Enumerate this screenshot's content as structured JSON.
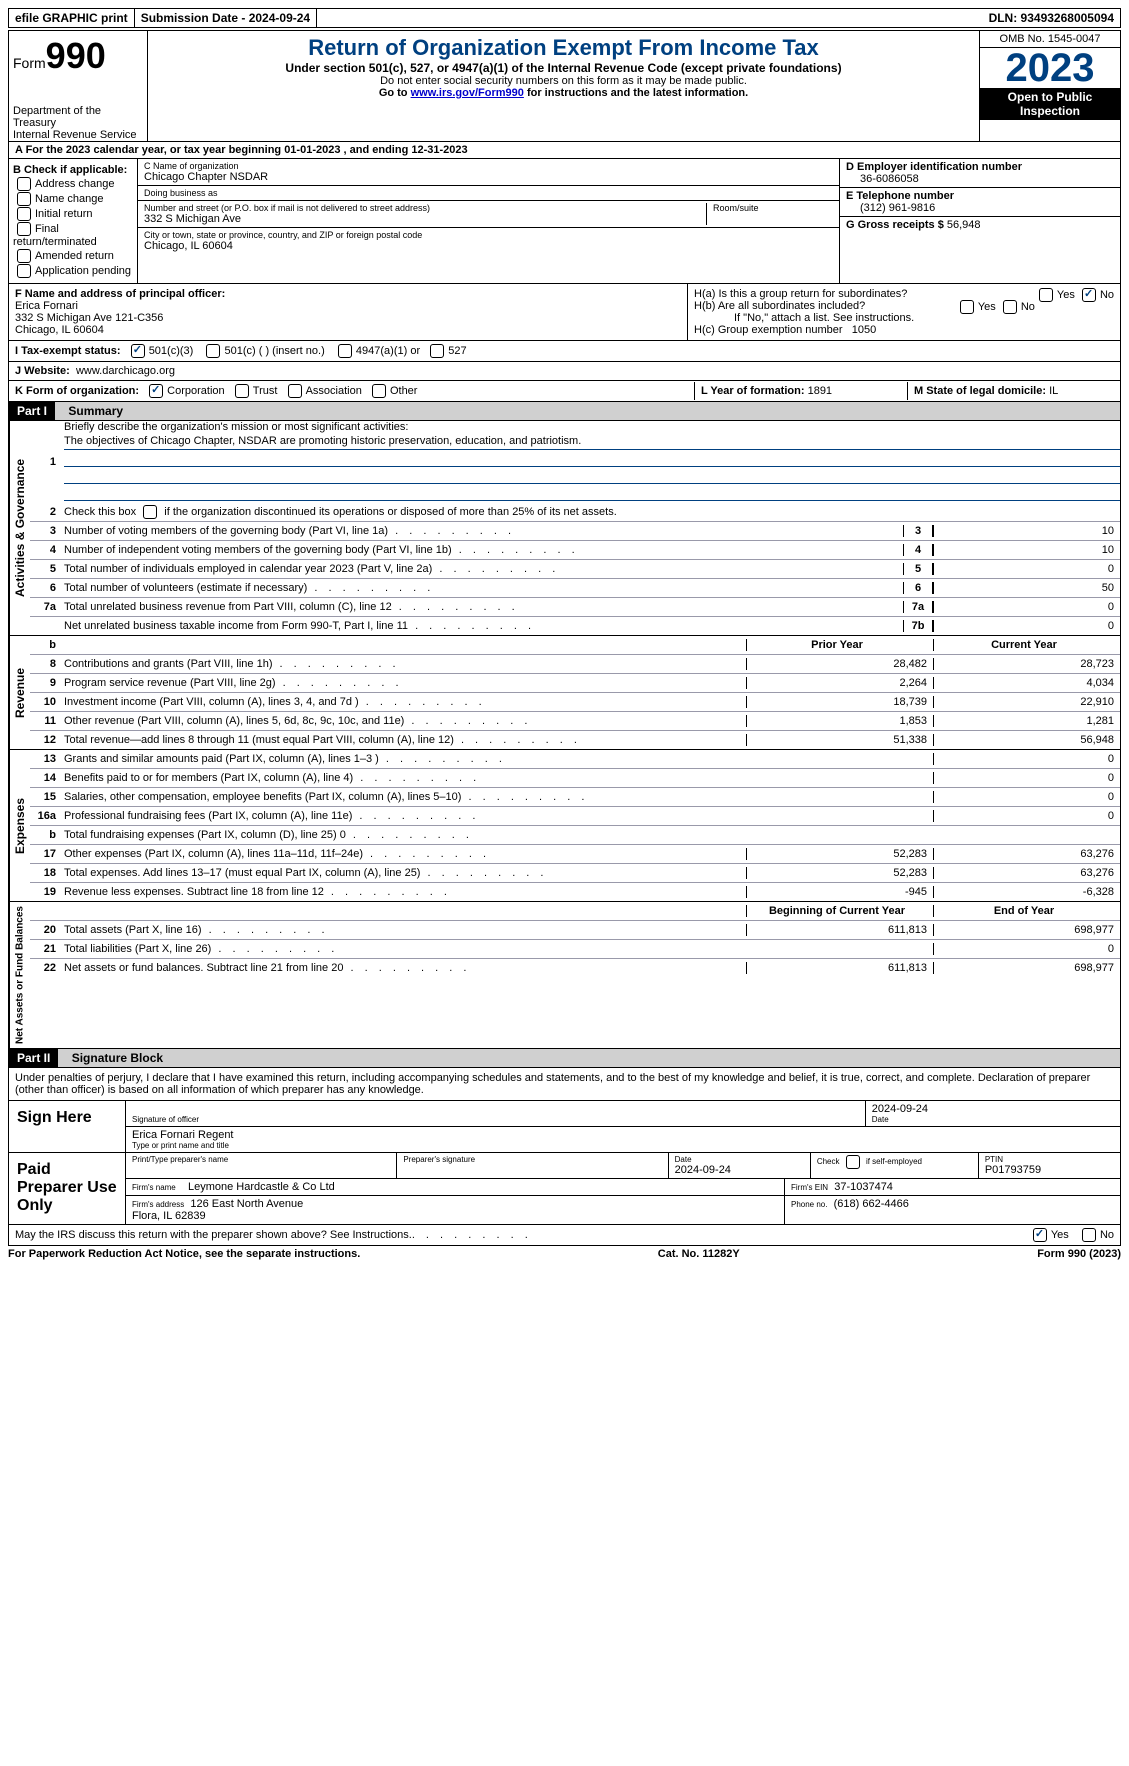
{
  "colors": {
    "accent": "#004080",
    "link": "#0000cc",
    "background": "#ffffff",
    "text": "#000000",
    "shaded": "#cccccc",
    "part_header_bg": "#000000",
    "part_bar_bg": "#d0d0d0"
  },
  "top": {
    "efile": "efile GRAPHIC print",
    "submission": "Submission Date - 2024-09-24",
    "dln": "DLN: 93493268005094"
  },
  "header": {
    "form": "Form",
    "number": "990",
    "dept": "Department of the Treasury\nInternal Revenue Service",
    "title": "Return of Organization Exempt From Income Tax",
    "subtitle": "Under section 501(c), 527, or 4947(a)(1) of the Internal Revenue Code (except private foundations)",
    "note1": "Do not enter social security numbers on this form as it may be made public.",
    "note2_pre": "Go to ",
    "note2_link": "www.irs.gov/Form990",
    "note2_post": " for instructions and the latest information.",
    "omb": "OMB No. 1545-0047",
    "year": "2023",
    "inspection": "Open to Public Inspection"
  },
  "lineA": "A For the 2023 calendar year, or tax year beginning 01-01-2023   , and ending 12-31-2023",
  "boxB": {
    "title": "B Check if applicable:",
    "items": [
      "Address change",
      "Name change",
      "Initial return",
      "Final return/terminated",
      "Amended return",
      "Application pending"
    ]
  },
  "boxC": {
    "name_label": "C Name of organization",
    "name": "Chicago Chapter NSDAR",
    "dba_label": "Doing business as",
    "dba": "",
    "addr_label": "Number and street (or P.O. box if mail is not delivered to street address)",
    "addr": "332 S Michigan Ave",
    "room_label": "Room/suite",
    "city_label": "City or town, state or province, country, and ZIP or foreign postal code",
    "city": "Chicago, IL  60604"
  },
  "boxD": {
    "label": "D Employer identification number",
    "value": "36-6086058"
  },
  "boxE": {
    "label": "E Telephone number",
    "value": "(312) 961-9816"
  },
  "boxG": {
    "label": "G Gross receipts $",
    "value": "56,948"
  },
  "boxF": {
    "label": "F  Name and address of principal officer:",
    "name": "Erica Fornari",
    "addr": "332 S Michigan Ave 121-C356\nChicago, IL  60604"
  },
  "boxH": {
    "a": "H(a)  Is this a group return for subordinates?",
    "a_yes": "Yes",
    "a_no": "No",
    "b": "H(b)  Are all subordinates included?",
    "b_yes": "Yes",
    "b_no": "No",
    "b_note": "If \"No,\" attach a list. See instructions.",
    "c": "H(c)  Group exemption number",
    "c_val": "1050"
  },
  "taxExempt": {
    "label": "I    Tax-exempt status:",
    "opts": [
      "501(c)(3)",
      "501(c) (  ) (insert no.)",
      "4947(a)(1) or",
      "527"
    ]
  },
  "website": {
    "label": "J    Website:",
    "value": "www.darchicago.org"
  },
  "formOrg": {
    "label": "K Form of organization:",
    "opts": [
      "Corporation",
      "Trust",
      "Association",
      "Other"
    ]
  },
  "yearFormed": {
    "label": "L Year of formation:",
    "value": "1891"
  },
  "domicile": {
    "label": "M State of legal domicile:",
    "value": "IL"
  },
  "partI": {
    "header": "Part I",
    "title": "Summary"
  },
  "gov": {
    "side": "Activities & Governance",
    "line1": "Briefly describe the organization's mission or most significant activities:",
    "mission": "The objectives of Chicago Chapter, NSDAR are promoting historic preservation, education, and patriotism.",
    "line2": "Check this box      if the organization discontinued its operations or disposed of more than 25% of its net assets.",
    "rows": [
      {
        "n": "3",
        "d": "Number of voting members of the governing body (Part VI, line 1a)",
        "box": "3",
        "v": "10"
      },
      {
        "n": "4",
        "d": "Number of independent voting members of the governing body (Part VI, line 1b)",
        "box": "4",
        "v": "10"
      },
      {
        "n": "5",
        "d": "Total number of individuals employed in calendar year 2023 (Part V, line 2a)",
        "box": "5",
        "v": "0"
      },
      {
        "n": "6",
        "d": "Total number of volunteers (estimate if necessary)",
        "box": "6",
        "v": "50"
      },
      {
        "n": "7a",
        "d": "Total unrelated business revenue from Part VIII, column (C), line 12",
        "box": "7a",
        "v": "0"
      },
      {
        "n": "",
        "d": "Net unrelated business taxable income from Form 990-T, Part I, line 11",
        "box": "7b",
        "v": "0"
      }
    ]
  },
  "rev": {
    "side": "Revenue",
    "hdr_prior": "Prior Year",
    "hdr_curr": "Current Year",
    "rows": [
      {
        "n": "8",
        "d": "Contributions and grants (Part VIII, line 1h)",
        "p": "28,482",
        "c": "28,723"
      },
      {
        "n": "9",
        "d": "Program service revenue (Part VIII, line 2g)",
        "p": "2,264",
        "c": "4,034"
      },
      {
        "n": "10",
        "d": "Investment income (Part VIII, column (A), lines 3, 4, and 7d )",
        "p": "18,739",
        "c": "22,910"
      },
      {
        "n": "11",
        "d": "Other revenue (Part VIII, column (A), lines 5, 6d, 8c, 9c, 10c, and 11e)",
        "p": "1,853",
        "c": "1,281"
      },
      {
        "n": "12",
        "d": "Total revenue—add lines 8 through 11 (must equal Part VIII, column (A), line 12)",
        "p": "51,338",
        "c": "56,948"
      }
    ]
  },
  "exp": {
    "side": "Expenses",
    "rows": [
      {
        "n": "13",
        "d": "Grants and similar amounts paid (Part IX, column (A), lines 1–3 )",
        "p": "",
        "c": "0"
      },
      {
        "n": "14",
        "d": "Benefits paid to or for members (Part IX, column (A), line 4)",
        "p": "",
        "c": "0"
      },
      {
        "n": "15",
        "d": "Salaries, other compensation, employee benefits (Part IX, column (A), lines 5–10)",
        "p": "",
        "c": "0"
      },
      {
        "n": "16a",
        "d": "Professional fundraising fees (Part IX, column (A), line 11e)",
        "p": "",
        "c": "0"
      },
      {
        "n": "b",
        "d": "Total fundraising expenses (Part IX, column (D), line 25) 0",
        "p": "shaded",
        "c": "shaded"
      },
      {
        "n": "17",
        "d": "Other expenses (Part IX, column (A), lines 11a–11d, 11f–24e)",
        "p": "52,283",
        "c": "63,276"
      },
      {
        "n": "18",
        "d": "Total expenses. Add lines 13–17 (must equal Part IX, column (A), line 25)",
        "p": "52,283",
        "c": "63,276"
      },
      {
        "n": "19",
        "d": "Revenue less expenses. Subtract line 18 from line 12",
        "p": "-945",
        "c": "-6,328"
      }
    ]
  },
  "net": {
    "side": "Net Assets or Fund Balances",
    "hdr_prior": "Beginning of Current Year",
    "hdr_curr": "End of Year",
    "rows": [
      {
        "n": "20",
        "d": "Total assets (Part X, line 16)",
        "p": "611,813",
        "c": "698,977"
      },
      {
        "n": "21",
        "d": "Total liabilities (Part X, line 26)",
        "p": "",
        "c": "0"
      },
      {
        "n": "22",
        "d": "Net assets or fund balances. Subtract line 21 from line 20",
        "p": "611,813",
        "c": "698,977"
      }
    ]
  },
  "partII": {
    "header": "Part II",
    "title": "Signature Block"
  },
  "perjury": "Under penalties of perjury, I declare that I have examined this return, including accompanying schedules and statements, and to the best of my knowledge and belief, it is true, correct, and complete. Declaration of preparer (other than officer) is based on all information of which preparer has any knowledge.",
  "sign": {
    "left": "Sign Here",
    "date": "2024-09-24",
    "sig_label": "Signature of officer",
    "name": "Erica Fornari Regent",
    "name_label": "Type or print name and title",
    "date_label": "Date"
  },
  "preparer": {
    "left": "Paid Preparer Use Only",
    "name_label": "Print/Type preparer's name",
    "sig_label": "Preparer's signature",
    "date_label": "Date",
    "date": "2024-09-24",
    "check_label": "Check        if self-employed",
    "ptin_label": "PTIN",
    "ptin": "P01793759",
    "firm_name_label": "Firm's name",
    "firm_name": "Leymone Hardcastle & Co Ltd",
    "firm_ein_label": "Firm's EIN",
    "firm_ein": "37-1037474",
    "firm_addr_label": "Firm's address",
    "firm_addr": "126 East North Avenue\nFlora, IL  62839",
    "phone_label": "Phone no.",
    "phone": "(618) 662-4466"
  },
  "discuss": {
    "q": "May the IRS discuss this return with the preparer shown above? See Instructions.",
    "yes": "Yes",
    "no": "No"
  },
  "footer": {
    "left": "For Paperwork Reduction Act Notice, see the separate instructions.",
    "center": "Cat. No. 11282Y",
    "right_pre": "Form ",
    "right_form": "990",
    "right_post": " (2023)"
  }
}
